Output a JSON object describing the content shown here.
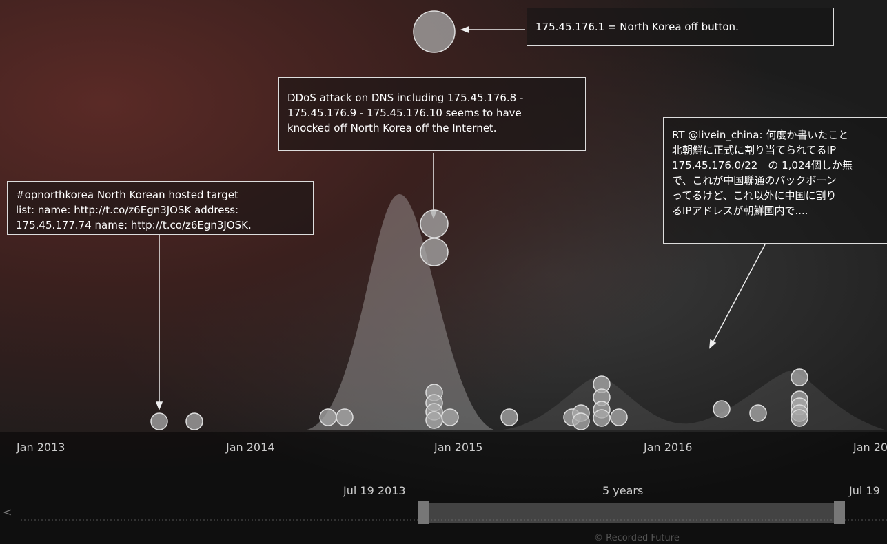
{
  "annotations": [
    {
      "lines": [
        "175.45.176.1 = North Korea off button."
      ]
    },
    {
      "lines": [
        "DDoS attack on DNS including 175.45.176.8 -",
        "175.45.176.9 - 175.45.176.10 seems to have",
        "knocked off North Korea off the Internet."
      ]
    },
    {
      "lines": [
        "#opnorthkorea North Korean hosted target",
        "list: name: http://t.co/z6Egn3JOSK address:",
        "175.45.177.74 name: http://t.co/z6Egn3JOSK."
      ]
    },
    {
      "lines": [
        "RT @livein_china: 何度か書いたこと",
        "北朝鮮に正式に割り当てられてるIP",
        "175.45.176.0/22　の 1,024個しか無",
        "で、これが中国聯通のバックボーン",
        "ってるけど、これ以外に中国に割り",
        "るIPアドレスが朝鮮国内で...."
      ]
    }
  ],
  "timeline": {
    "labels": [
      "Jan 2013",
      "Jan 2014",
      "Jan 2015",
      "Jan 2016",
      "Jan 20"
    ]
  },
  "range": {
    "start": "Jul 19 2013",
    "span": "5 years",
    "end": "Jul 19",
    "back": "<"
  },
  "footer": "© Recorded Future"
}
